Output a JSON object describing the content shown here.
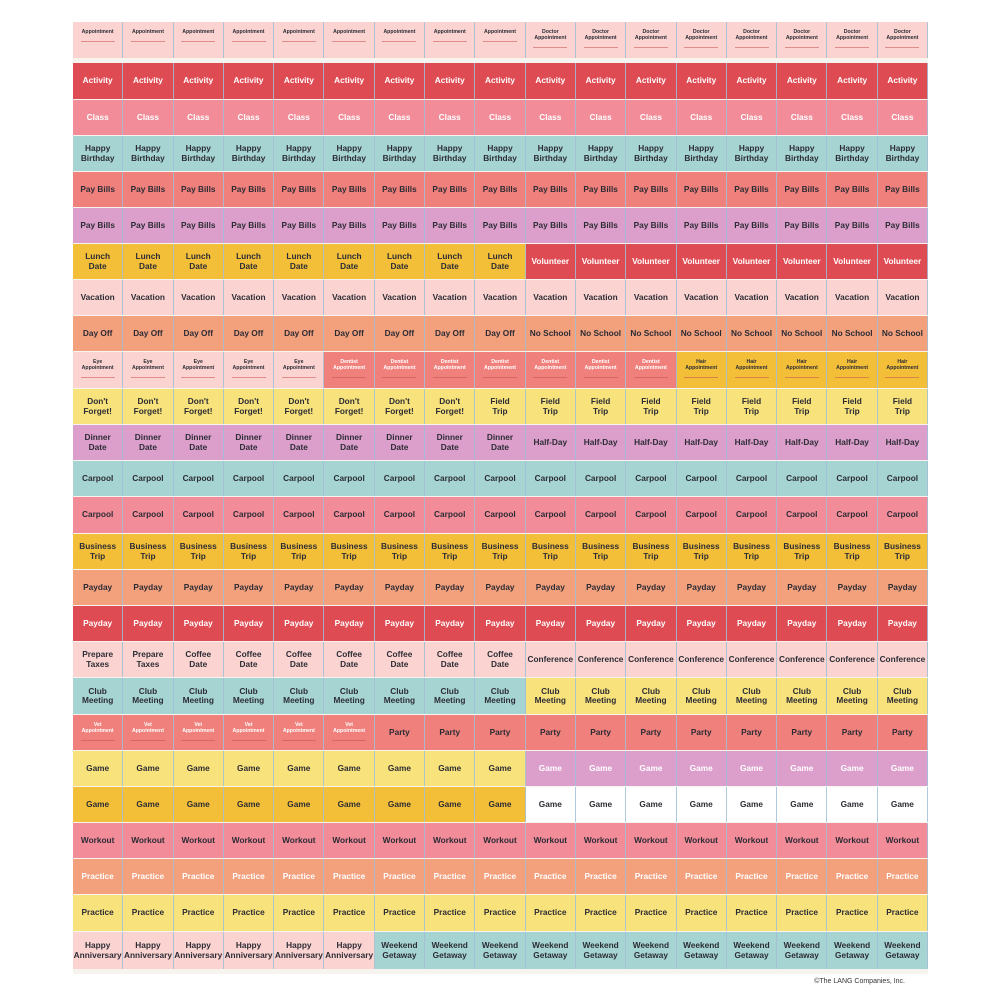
{
  "colors": {
    "red": "#df4b52",
    "pink": "#f28c99",
    "teal": "#a5d4d2",
    "salmon": "#f0807c",
    "lavender": "#dc9fcc",
    "yellow": "#f3bf39",
    "lightpink": "#fbd4d2",
    "orange": "#f3a07d",
    "paleyellow": "#f8e27b",
    "white": "#ffffff"
  },
  "copyright": "©The LANG Companies, Inc.",
  "rows": [
    {
      "segments": [
        {
          "count": 9,
          "label": "Appointment",
          "color": "lightpink",
          "small": true
        },
        {
          "count": 8,
          "label": "Doctor\nAppointment",
          "color": "lightpink",
          "small": true
        }
      ]
    },
    {
      "segments": [
        {
          "count": 17,
          "label": "Activity",
          "color": "red",
          "light": true
        }
      ]
    },
    {
      "segments": [
        {
          "count": 17,
          "label": "Class",
          "color": "pink",
          "light": true
        }
      ]
    },
    {
      "segments": [
        {
          "count": 17,
          "label": "Happy\nBirthday",
          "color": "teal"
        }
      ]
    },
    {
      "segments": [
        {
          "count": 17,
          "label": "Pay Bills",
          "color": "salmon"
        }
      ]
    },
    {
      "segments": [
        {
          "count": 17,
          "label": "Pay Bills",
          "color": "lavender"
        }
      ]
    },
    {
      "segments": [
        {
          "count": 9,
          "label": "Lunch\nDate",
          "color": "yellow"
        },
        {
          "count": 8,
          "label": "Volunteer",
          "color": "red",
          "light": true
        }
      ]
    },
    {
      "segments": [
        {
          "count": 17,
          "label": "Vacation",
          "color": "lightpink"
        }
      ]
    },
    {
      "segments": [
        {
          "count": 9,
          "label": "Day Off",
          "color": "orange"
        },
        {
          "count": 8,
          "label": "No School",
          "color": "orange"
        }
      ]
    },
    {
      "segments": [
        {
          "count": 5,
          "label": "Eye\nAppointment",
          "color": "lightpink",
          "small": true
        },
        {
          "count": 7,
          "label": "Dentist\nAppointment",
          "color": "salmon",
          "small": true,
          "light": true
        },
        {
          "count": 5,
          "label": "Hair\nAppointment",
          "color": "yellow",
          "small": true
        }
      ]
    },
    {
      "segments": [
        {
          "count": 8,
          "label": "Don't\nForget!",
          "color": "paleyellow"
        },
        {
          "count": 9,
          "label": "Field\nTrip",
          "color": "paleyellow"
        }
      ]
    },
    {
      "segments": [
        {
          "count": 9,
          "label": "Dinner\nDate",
          "color": "lavender"
        },
        {
          "count": 8,
          "label": "Half-Day",
          "color": "lavender"
        }
      ]
    },
    {
      "segments": [
        {
          "count": 17,
          "label": "Carpool",
          "color": "teal"
        }
      ]
    },
    {
      "segments": [
        {
          "count": 17,
          "label": "Carpool",
          "color": "pink"
        }
      ]
    },
    {
      "segments": [
        {
          "count": 17,
          "label": "Business\nTrip",
          "color": "yellow"
        }
      ]
    },
    {
      "segments": [
        {
          "count": 17,
          "label": "Payday",
          "color": "orange"
        }
      ]
    },
    {
      "segments": [
        {
          "count": 17,
          "label": "Payday",
          "color": "red",
          "light": true
        }
      ]
    },
    {
      "segments": [
        {
          "count": 2,
          "label": "Prepare\nTaxes",
          "color": "lightpink"
        },
        {
          "count": 7,
          "label": "Coffee\nDate",
          "color": "lightpink"
        },
        {
          "count": 8,
          "label": "Conference",
          "color": "lightpink"
        }
      ]
    },
    {
      "segments": [
        {
          "count": 9,
          "label": "Club\nMeeting",
          "color": "teal"
        },
        {
          "count": 8,
          "label": "Club\nMeeting",
          "color": "paleyellow"
        }
      ]
    },
    {
      "segments": [
        {
          "count": 6,
          "label": "Vet\nAppointment",
          "color": "salmon",
          "small": true,
          "light": true
        },
        {
          "count": 11,
          "label": "Party",
          "color": "salmon"
        }
      ]
    },
    {
      "segments": [
        {
          "count": 9,
          "label": "Game",
          "color": "paleyellow"
        },
        {
          "count": 8,
          "label": "Game",
          "color": "lavender",
          "light": true
        }
      ]
    },
    {
      "segments": [
        {
          "count": 9,
          "label": "Game",
          "color": "yellow"
        },
        {
          "count": 8,
          "label": "Game",
          "color": "white"
        }
      ]
    },
    {
      "segments": [
        {
          "count": 17,
          "label": "Workout",
          "color": "pink"
        }
      ]
    },
    {
      "segments": [
        {
          "count": 17,
          "label": "Practice",
          "color": "orange",
          "light": true
        }
      ]
    },
    {
      "segments": [
        {
          "count": 17,
          "label": "Practice",
          "color": "paleyellow"
        }
      ]
    },
    {
      "segments": [
        {
          "count": 6,
          "label": "Happy\nAnniversary",
          "color": "lightpink"
        },
        {
          "count": 11,
          "label": "Weekend\nGetaway",
          "color": "teal"
        }
      ]
    }
  ]
}
